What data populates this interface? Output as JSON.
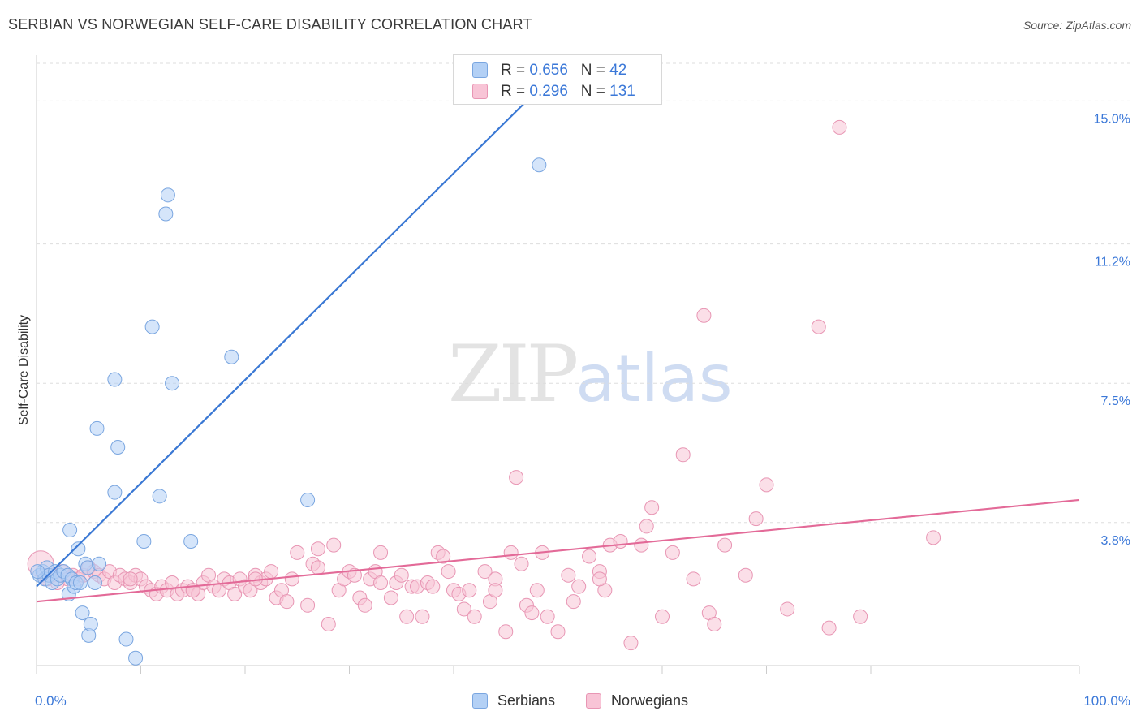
{
  "title": "SERBIAN VS NORWEGIAN SELF-CARE DISABILITY CORRELATION CHART",
  "source": "Source: ZipAtlas.com",
  "watermark": {
    "zip": "ZIP",
    "atlas": "atlas"
  },
  "colors": {
    "serbians_fill": "#b3d0f5",
    "serbians_stroke": "#7aa6e0",
    "serbians_line": "#3a78d4",
    "norwegians_fill": "#f8c4d6",
    "norwegians_stroke": "#e896b4",
    "norwegians_line": "#e36a98",
    "tick_label": "#3b78d8",
    "grid": "#dddddd"
  },
  "legend": {
    "rows": [
      {
        "r_label": "R = ",
        "r_value": "0.656",
        "n_label": "N = ",
        "n_value": "42"
      },
      {
        "r_label": "R = ",
        "r_value": "0.296",
        "n_label": "N = ",
        "n_value": "131"
      }
    ]
  },
  "bottom_legend": {
    "series1": "Serbians",
    "series2": "Norwegians"
  },
  "chart_data": {
    "type": "scatter",
    "title": "SERBIAN VS NORWEGIAN SELF-CARE DISABILITY CORRELATION CHART",
    "xlabel": "",
    "ylabel": "Self-Care Disability",
    "xlim": [
      0,
      100
    ],
    "ylim": [
      0,
      16
    ],
    "x_tick_labels": [
      "0.0%",
      "100.0%"
    ],
    "y_ticks": [
      3.8,
      7.5,
      11.2,
      15.0
    ],
    "y_tick_labels": [
      "3.8%",
      "7.5%",
      "11.2%",
      "15.0%"
    ],
    "grid": true,
    "series": [
      {
        "name": "Serbians",
        "r": 0.656,
        "n": 42,
        "trend": {
          "x": [
            0,
            47.0
          ],
          "y": [
            2.1,
            15.0
          ]
        },
        "points": [
          [
            0.3,
            2.4
          ],
          [
            0.6,
            2.5
          ],
          [
            0.8,
            2.3
          ],
          [
            1.0,
            2.6
          ],
          [
            1.2,
            2.4
          ],
          [
            1.5,
            2.2
          ],
          [
            1.8,
            2.5
          ],
          [
            2.0,
            2.3
          ],
          [
            2.3,
            2.4
          ],
          [
            2.6,
            2.5
          ],
          [
            3.0,
            2.4
          ],
          [
            3.1,
            1.9
          ],
          [
            3.2,
            3.6
          ],
          [
            3.4,
            2.3
          ],
          [
            3.6,
            2.1
          ],
          [
            3.8,
            2.2
          ],
          [
            4.0,
            3.1
          ],
          [
            4.2,
            2.2
          ],
          [
            4.4,
            1.4
          ],
          [
            4.7,
            2.7
          ],
          [
            4.9,
            2.6
          ],
          [
            5.0,
            0.8
          ],
          [
            5.2,
            1.1
          ],
          [
            5.6,
            2.2
          ],
          [
            5.8,
            6.3
          ],
          [
            6.0,
            2.7
          ],
          [
            7.5,
            4.6
          ],
          [
            7.5,
            7.6
          ],
          [
            7.8,
            5.8
          ],
          [
            8.6,
            0.7
          ],
          [
            9.5,
            0.2
          ],
          [
            10.3,
            3.3
          ],
          [
            11.1,
            9.0
          ],
          [
            11.8,
            4.5
          ],
          [
            12.4,
            12.0
          ],
          [
            12.6,
            12.5
          ],
          [
            13.0,
            7.5
          ],
          [
            14.8,
            3.3
          ],
          [
            18.7,
            8.2
          ],
          [
            26.0,
            4.4
          ],
          [
            48.2,
            13.3
          ],
          [
            0.1,
            2.5
          ]
        ]
      },
      {
        "name": "Norwegians",
        "r": 0.296,
        "n": 131,
        "trend": {
          "x": [
            0,
            100
          ],
          "y": [
            1.7,
            4.4
          ]
        },
        "points": [
          [
            0.4,
            2.7
          ],
          [
            0.7,
            2.4
          ],
          [
            1.0,
            2.3
          ],
          [
            1.5,
            2.4
          ],
          [
            2.0,
            2.2
          ],
          [
            2.5,
            2.5
          ],
          [
            3.0,
            2.3
          ],
          [
            3.5,
            2.4
          ],
          [
            4.0,
            2.3
          ],
          [
            4.5,
            2.4
          ],
          [
            5.0,
            2.6
          ],
          [
            5.5,
            2.5
          ],
          [
            6.0,
            2.4
          ],
          [
            6.5,
            2.3
          ],
          [
            7.0,
            2.5
          ],
          [
            7.5,
            2.2
          ],
          [
            8.0,
            2.4
          ],
          [
            8.5,
            2.3
          ],
          [
            9.0,
            2.2
          ],
          [
            9.5,
            2.4
          ],
          [
            10.0,
            2.3
          ],
          [
            10.5,
            2.1
          ],
          [
            11.0,
            2.0
          ],
          [
            11.5,
            1.9
          ],
          [
            12.0,
            2.1
          ],
          [
            12.5,
            2.0
          ],
          [
            13.0,
            2.2
          ],
          [
            13.5,
            1.9
          ],
          [
            14.0,
            2.0
          ],
          [
            14.5,
            2.1
          ],
          [
            15.0,
            2.0
          ],
          [
            15.5,
            1.9
          ],
          [
            16.0,
            2.2
          ],
          [
            16.5,
            2.4
          ],
          [
            17.0,
            2.1
          ],
          [
            17.5,
            2.0
          ],
          [
            18.0,
            2.3
          ],
          [
            18.5,
            2.2
          ],
          [
            19.0,
            1.9
          ],
          [
            19.5,
            2.3
          ],
          [
            20.0,
            2.1
          ],
          [
            20.5,
            2.0
          ],
          [
            21.0,
            2.4
          ],
          [
            21.5,
            2.2
          ],
          [
            22.0,
            2.3
          ],
          [
            22.5,
            2.5
          ],
          [
            23.0,
            1.8
          ],
          [
            23.5,
            2.0
          ],
          [
            24.0,
            1.7
          ],
          [
            24.5,
            2.3
          ],
          [
            25.0,
            3.0
          ],
          [
            26.0,
            1.6
          ],
          [
            26.5,
            2.7
          ],
          [
            27.0,
            3.1
          ],
          [
            28.0,
            1.1
          ],
          [
            28.5,
            3.2
          ],
          [
            29.0,
            2.0
          ],
          [
            29.5,
            2.3
          ],
          [
            30.0,
            2.5
          ],
          [
            30.5,
            2.4
          ],
          [
            31.0,
            1.8
          ],
          [
            31.5,
            1.6
          ],
          [
            32.0,
            2.3
          ],
          [
            32.5,
            2.5
          ],
          [
            33.0,
            3.0
          ],
          [
            34.0,
            1.8
          ],
          [
            34.5,
            2.2
          ],
          [
            35.0,
            2.4
          ],
          [
            35.5,
            1.3
          ],
          [
            36.0,
            2.1
          ],
          [
            36.5,
            2.1
          ],
          [
            37.0,
            1.3
          ],
          [
            37.5,
            2.2
          ],
          [
            38.0,
            2.1
          ],
          [
            38.5,
            3.0
          ],
          [
            39.0,
            2.9
          ],
          [
            39.5,
            2.5
          ],
          [
            40.0,
            2.0
          ],
          [
            40.5,
            1.9
          ],
          [
            41.0,
            1.5
          ],
          [
            41.5,
            2.0
          ],
          [
            42.0,
            1.3
          ],
          [
            43.0,
            2.5
          ],
          [
            43.5,
            1.7
          ],
          [
            44.0,
            2.3
          ],
          [
            45.0,
            0.9
          ],
          [
            45.5,
            3.0
          ],
          [
            46.0,
            5.0
          ],
          [
            46.5,
            2.7
          ],
          [
            47.0,
            1.6
          ],
          [
            47.5,
            1.4
          ],
          [
            48.0,
            2.0
          ],
          [
            48.5,
            3.0
          ],
          [
            49.0,
            1.3
          ],
          [
            50.0,
            0.9
          ],
          [
            51.0,
            2.4
          ],
          [
            51.5,
            1.7
          ],
          [
            52.0,
            2.1
          ],
          [
            53.0,
            2.9
          ],
          [
            54.0,
            2.5
          ],
          [
            54.5,
            2.0
          ],
          [
            55.0,
            3.2
          ],
          [
            56.0,
            3.3
          ],
          [
            57.0,
            0.6
          ],
          [
            58.0,
            3.2
          ],
          [
            58.5,
            3.7
          ],
          [
            59.0,
            4.2
          ],
          [
            60.0,
            1.3
          ],
          [
            61.0,
            3.0
          ],
          [
            62.0,
            5.6
          ],
          [
            63.0,
            2.3
          ],
          [
            64.0,
            9.3
          ],
          [
            64.5,
            1.4
          ],
          [
            65.0,
            1.1
          ],
          [
            66.0,
            3.2
          ],
          [
            68.0,
            2.4
          ],
          [
            69.0,
            3.9
          ],
          [
            70.0,
            4.8
          ],
          [
            72.0,
            1.5
          ],
          [
            75.0,
            9.0
          ],
          [
            76.0,
            1.0
          ],
          [
            79.0,
            1.3
          ],
          [
            86.0,
            3.4
          ],
          [
            77.0,
            14.3
          ],
          [
            54.0,
            2.3
          ],
          [
            44.0,
            2.0
          ],
          [
            33.0,
            2.2
          ],
          [
            27.0,
            2.6
          ],
          [
            21.0,
            2.3
          ],
          [
            15.0,
            2.0
          ],
          [
            9.0,
            2.3
          ]
        ]
      }
    ]
  }
}
